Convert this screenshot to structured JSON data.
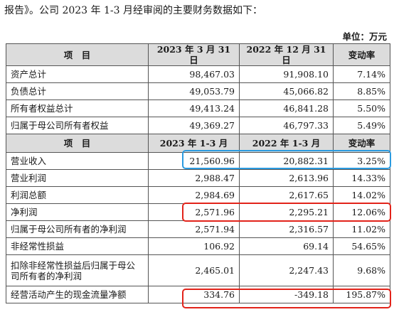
{
  "intro_text": "报告》。公司 2023 年 1-3 月经审阅的主要财务数据如下：",
  "unit_label": "单位：万元",
  "colors": {
    "header_bg": "#dcdcdc",
    "highlight_blue": "#2b9be0",
    "highlight_red": "#e2231a"
  },
  "table": {
    "header1": [
      "项　目",
      "2023 年 3 月 31 日",
      "2022 年 12 月 31 日",
      "变动率"
    ],
    "section1": [
      {
        "item": "资产总计",
        "a": "98,467.03",
        "b": "91,908.10",
        "rate": "7.14%"
      },
      {
        "item": "负债总计",
        "a": "49,053.79",
        "b": "45,066.82",
        "rate": "8.85%"
      },
      {
        "item": "所有者权益总计",
        "a": "49,413.24",
        "b": "46,841.28",
        "rate": "5.50%"
      },
      {
        "item": "归属于母公司所有者权益",
        "a": "49,369.27",
        "b": "46,797.33",
        "rate": "5.49%"
      }
    ],
    "header2": [
      "项　目",
      "2023 年 1-3 月",
      "2022 年 1-3 月",
      "变动率"
    ],
    "section2": [
      {
        "item": "营业收入",
        "a": "21,560.96",
        "b": "20,882.31",
        "rate": "3.25%"
      },
      {
        "item": "营业利润",
        "a": "2,988.47",
        "b": "2,613.96",
        "rate": "14.33%"
      },
      {
        "item": "利润总额",
        "a": "2,984.69",
        "b": "2,617.65",
        "rate": "14.02%"
      },
      {
        "item": "净利润",
        "a": "2,571.96",
        "b": "2,295.21",
        "rate": "12.06%"
      },
      {
        "item": "归属于母公司所有者的净利润",
        "a": "2,571.94",
        "b": "2,316.57",
        "rate": "11.02%"
      },
      {
        "item": "非经常性损益",
        "a": "106.92",
        "b": "69.14",
        "rate": "54.65%"
      },
      {
        "item": "扣除非经常性损益后归属于母公司所有者的净利润",
        "a": "2,465.01",
        "b": "2,247.43",
        "rate": "9.68%"
      },
      {
        "item": "经营活动产生的现金流量净额",
        "a": "334.76",
        "b": "-349.18",
        "rate": "195.87%"
      }
    ]
  }
}
